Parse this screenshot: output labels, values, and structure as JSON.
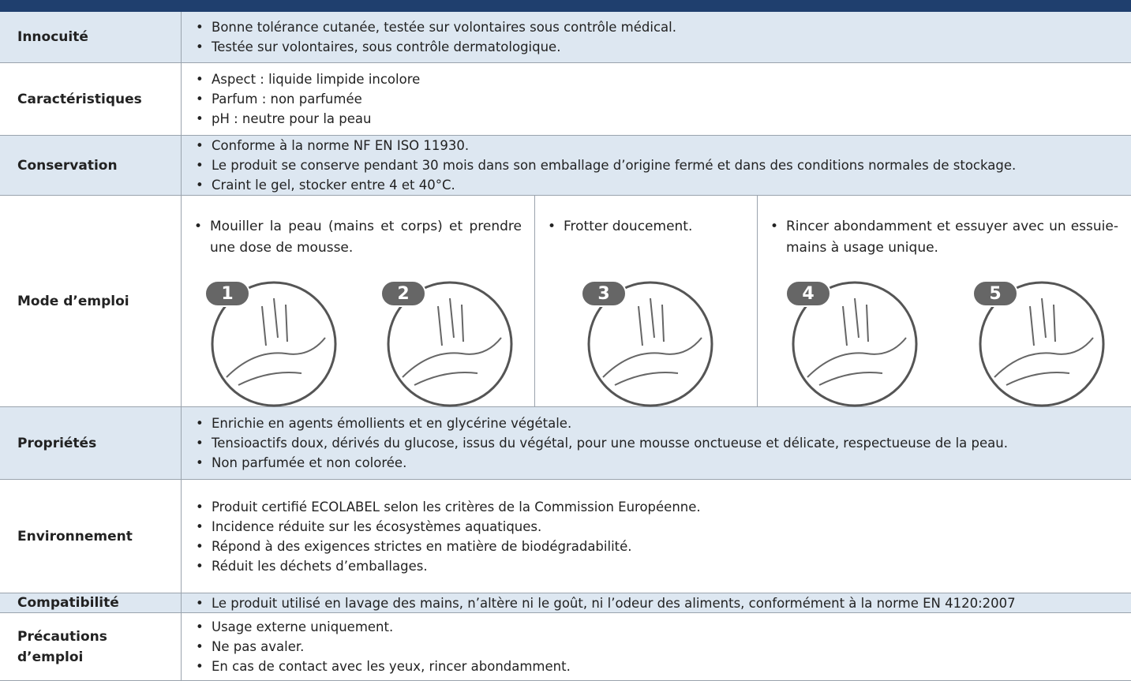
{
  "rows": [
    {
      "label": "Innocuité",
      "items": [
        "Bonne tolérance cutanée, testée sur volontaires sous contrôle médical.",
        "Testée sur volontaires, sous contrôle dermatologique."
      ]
    },
    {
      "label": "Caractéristiques",
      "items": [
        "Aspect : liquide limpide incolore",
        "Parfum : non parfumée",
        "pH : neutre pour la peau"
      ]
    },
    {
      "label": "Conservation",
      "items": [
        "Conforme à la norme NF EN ISO 11930.",
        "Le produit se conserve pendant 30 mois dans son emballage d’origine fermé et dans des conditions normales de stockage.",
        "Craint le gel, stocker entre 4 et 40°C."
      ]
    },
    {
      "label": "Mode d’emploi",
      "steps": [
        {
          "text": "Mouiller la peau (mains et corps) et prendre une dose de mousse.",
          "icons": [
            "1",
            "2"
          ]
        },
        {
          "text": "Frotter doucement.",
          "icons": [
            "3"
          ]
        },
        {
          "text": "Rincer abondamment et essuyer avec un essuie-mains à usage unique.",
          "icons": [
            "4",
            "5"
          ]
        }
      ]
    },
    {
      "label": "Propriétés",
      "items": [
        "Enrichie en agents émollients et en glycérine végétale.",
        "Tensioactifs doux, dérivés du glucose, issus du végétal, pour une mousse onctueuse et délicate, respectueuse de la peau.",
        "Non parfumée et non colorée."
      ]
    },
    {
      "label": "Environnement",
      "items": [
        "Produit certifié ECOLABEL selon les critères de la Commission Européenne.",
        "Incidence réduite sur les écosystèmes aquatiques.",
        "Répond à des exigences strictes en matière de biodégradabilité.",
        "Réduit les déchets d’emballages."
      ]
    },
    {
      "label": "Compatibilité",
      "items": [
        "Le produit utilisé en lavage des mains, n’altère ni le goût, ni l’odeur des aliments, conformément à la norme EN 4120:2007"
      ]
    },
    {
      "label": "Précautions d’emploi",
      "items": [
        "Usage externe uniquement.",
        "Ne pas avaler.",
        "En cas de contact avec les yeux, rincer abondamment."
      ]
    }
  ]
}
